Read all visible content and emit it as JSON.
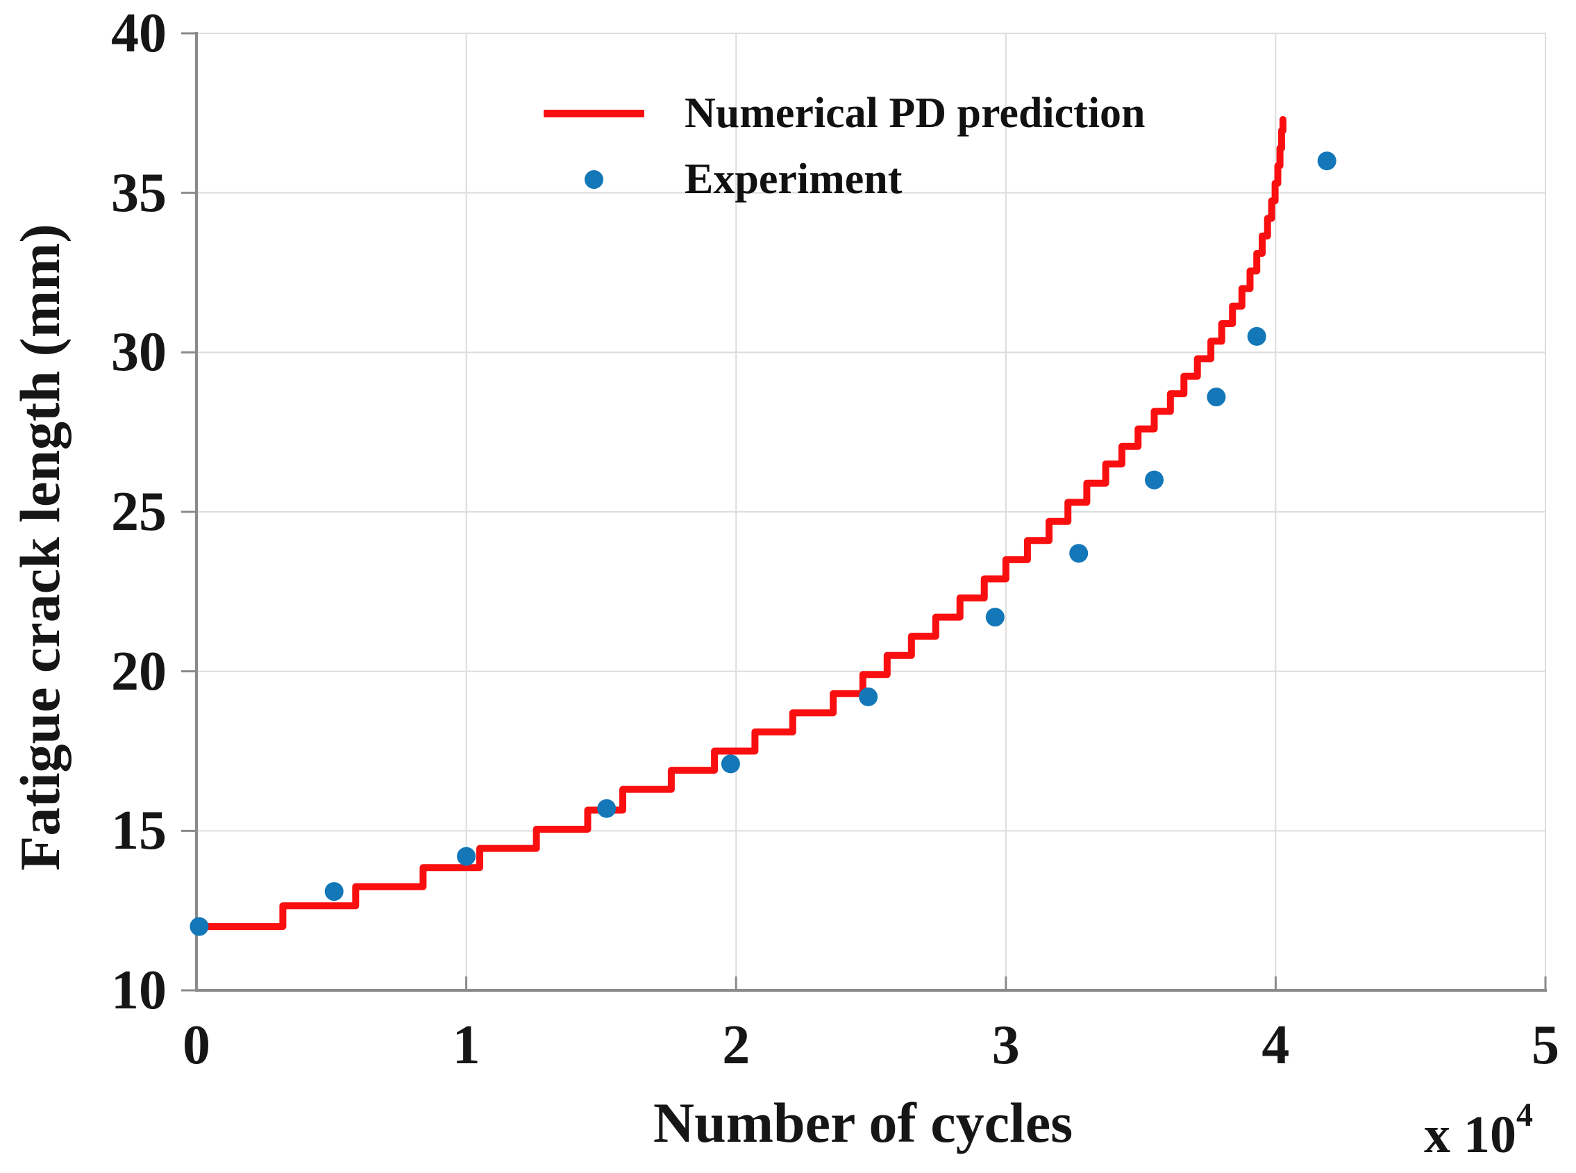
{
  "chart_data": {
    "type": "line",
    "title": "",
    "xlabel": "Number of cycles",
    "xscale_base": "x 10",
    "xscale_exponent": "4",
    "ylabel": "Fatigue crack length (mm)",
    "xlim": [
      0,
      5
    ],
    "ylim": [
      10,
      40
    ],
    "xticks": [
      "0",
      "1",
      "2",
      "3",
      "4",
      "5"
    ],
    "yticks": [
      "10",
      "15",
      "20",
      "25",
      "30",
      "35",
      "40"
    ],
    "grid": true,
    "colors": {
      "prediction_red": "#f90f0f",
      "experiment_blue": "#1377b8",
      "axis_gray": "#8a8a8a",
      "grid_gray": "#dcdcdc",
      "text_color": "#161616",
      "background": "#ffffff"
    },
    "legend": {
      "position": "upper-left-inside",
      "entries": [
        {
          "label": "Numerical PD prediction",
          "marker": "line",
          "color": "#f90f0f"
        },
        {
          "label": "Experiment",
          "marker": "dot",
          "color": "#1377b8"
        }
      ]
    },
    "series": [
      {
        "name": "Numerical PD prediction",
        "style": "staircase-line",
        "color": "#f90f0f",
        "x_units": "cycles x10^4",
        "y_units": "mm",
        "points": [
          [
            0.0,
            12.0
          ],
          [
            0.32,
            12.65
          ],
          [
            0.59,
            13.25
          ],
          [
            0.84,
            13.85
          ],
          [
            1.05,
            14.45
          ],
          [
            1.26,
            15.05
          ],
          [
            1.45,
            15.65
          ],
          [
            1.58,
            16.3
          ],
          [
            1.76,
            16.9
          ],
          [
            1.92,
            17.5
          ],
          [
            2.07,
            18.1
          ],
          [
            2.21,
            18.7
          ],
          [
            2.36,
            19.3
          ],
          [
            2.47,
            19.9
          ],
          [
            2.56,
            20.5
          ],
          [
            2.65,
            21.1
          ],
          [
            2.74,
            21.7
          ],
          [
            2.83,
            22.3
          ],
          [
            2.92,
            22.9
          ],
          [
            3.0,
            23.5
          ],
          [
            3.08,
            24.1
          ],
          [
            3.16,
            24.7
          ],
          [
            3.23,
            25.3
          ],
          [
            3.3,
            25.9
          ],
          [
            3.37,
            26.5
          ],
          [
            3.43,
            27.05
          ],
          [
            3.49,
            27.6
          ],
          [
            3.55,
            28.15
          ],
          [
            3.61,
            28.7
          ],
          [
            3.66,
            29.25
          ],
          [
            3.71,
            29.8
          ],
          [
            3.76,
            30.35
          ],
          [
            3.8,
            30.9
          ],
          [
            3.84,
            31.45
          ],
          [
            3.875,
            32.0
          ],
          [
            3.905,
            32.55
          ],
          [
            3.93,
            33.1
          ],
          [
            3.95,
            33.65
          ],
          [
            3.97,
            34.2
          ],
          [
            3.985,
            34.75
          ],
          [
            3.998,
            35.3
          ],
          [
            4.008,
            35.85
          ],
          [
            4.016,
            36.4
          ],
          [
            4.022,
            36.95
          ],
          [
            4.027,
            37.3
          ]
        ]
      },
      {
        "name": "Experiment",
        "style": "scatter",
        "color": "#1377b8",
        "x_units": "cycles x10^4",
        "y_units": "mm",
        "points": [
          [
            0.01,
            12.0
          ],
          [
            0.51,
            13.1
          ],
          [
            1.0,
            14.2
          ],
          [
            1.52,
            15.7
          ],
          [
            1.98,
            17.1
          ],
          [
            2.49,
            19.2
          ],
          [
            2.96,
            21.7
          ],
          [
            3.27,
            23.7
          ],
          [
            3.55,
            26.0
          ],
          [
            3.78,
            28.6
          ],
          [
            3.93,
            30.5
          ],
          [
            4.19,
            36.0
          ]
        ]
      }
    ]
  }
}
